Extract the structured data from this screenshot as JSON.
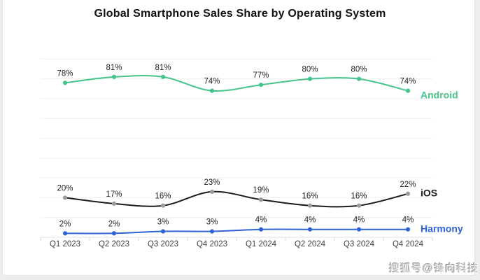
{
  "page": {
    "title": "Global Smartphone Sales Share by Operating System",
    "watermark": "搜狐号@锋向科技"
  },
  "chart_data": {
    "type": "line",
    "title": "Global Smartphone Sales Share by Operating System",
    "categories": [
      "Q1 2023",
      "Q2 2023",
      "Q3 2023",
      "Q4 2023",
      "Q1 2024",
      "Q2 2024",
      "Q3 2024",
      "Q4 2024"
    ],
    "unit": "%",
    "xlabel": "",
    "ylabel": "",
    "ylim": [
      0,
      90
    ],
    "grid": true,
    "smooth": true,
    "legend_position": "end-of-line-labels",
    "series": [
      {
        "name": "Android",
        "values": [
          78,
          81,
          81,
          74,
          77,
          80,
          80,
          74
        ],
        "color": "#44c38b",
        "marker_color": "#44c38b"
      },
      {
        "name": "iOS",
        "values": [
          20,
          17,
          16,
          23,
          19,
          16,
          16,
          22
        ],
        "color": "#1b1b1b",
        "marker_color": "#9b9b9b"
      },
      {
        "name": "Harmony",
        "values": [
          2,
          2,
          3,
          3,
          4,
          4,
          4,
          4
        ],
        "color": "#2d63d5",
        "marker_color": "#2d63d5"
      }
    ],
    "data_labels": true
  },
  "colors": {
    "page_bg": "#eeeeee",
    "card_bg": "#ffffff",
    "card_border": "#e3e3e3",
    "title": "#111111",
    "grid_line": "#efefef",
    "axis_line": "#e2e2e2",
    "axis_tick": "#dadada",
    "axis_label": "#3f3f3f",
    "data_label": "#232323",
    "watermark": "#c4c4c4"
  }
}
